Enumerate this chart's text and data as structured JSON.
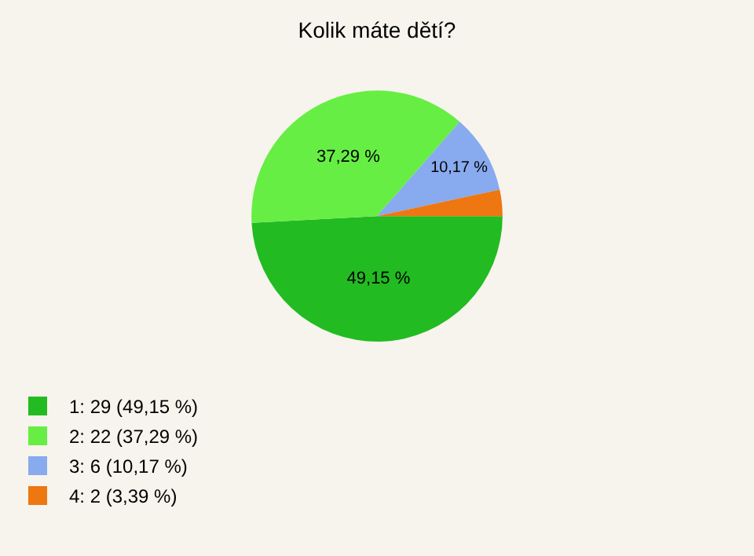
{
  "chart_data": {
    "type": "pie",
    "title": "Kolik máte dětí?",
    "categories": [
      "1: 29 (49,15 %)",
      "2: 22 (37,29 %)",
      "3: 6 (10,17 %)",
      "4: 2 (3,39 %)"
    ],
    "values": [
      49.15,
      37.29,
      10.17,
      3.39
    ],
    "colors": [
      "#22bb22",
      "#66ee44",
      "#88aaee",
      "#ee7711"
    ],
    "value_labels": [
      "49,15 %",
      "37,29 %",
      "10,17 %",
      null
    ],
    "legend": "bottom left"
  }
}
